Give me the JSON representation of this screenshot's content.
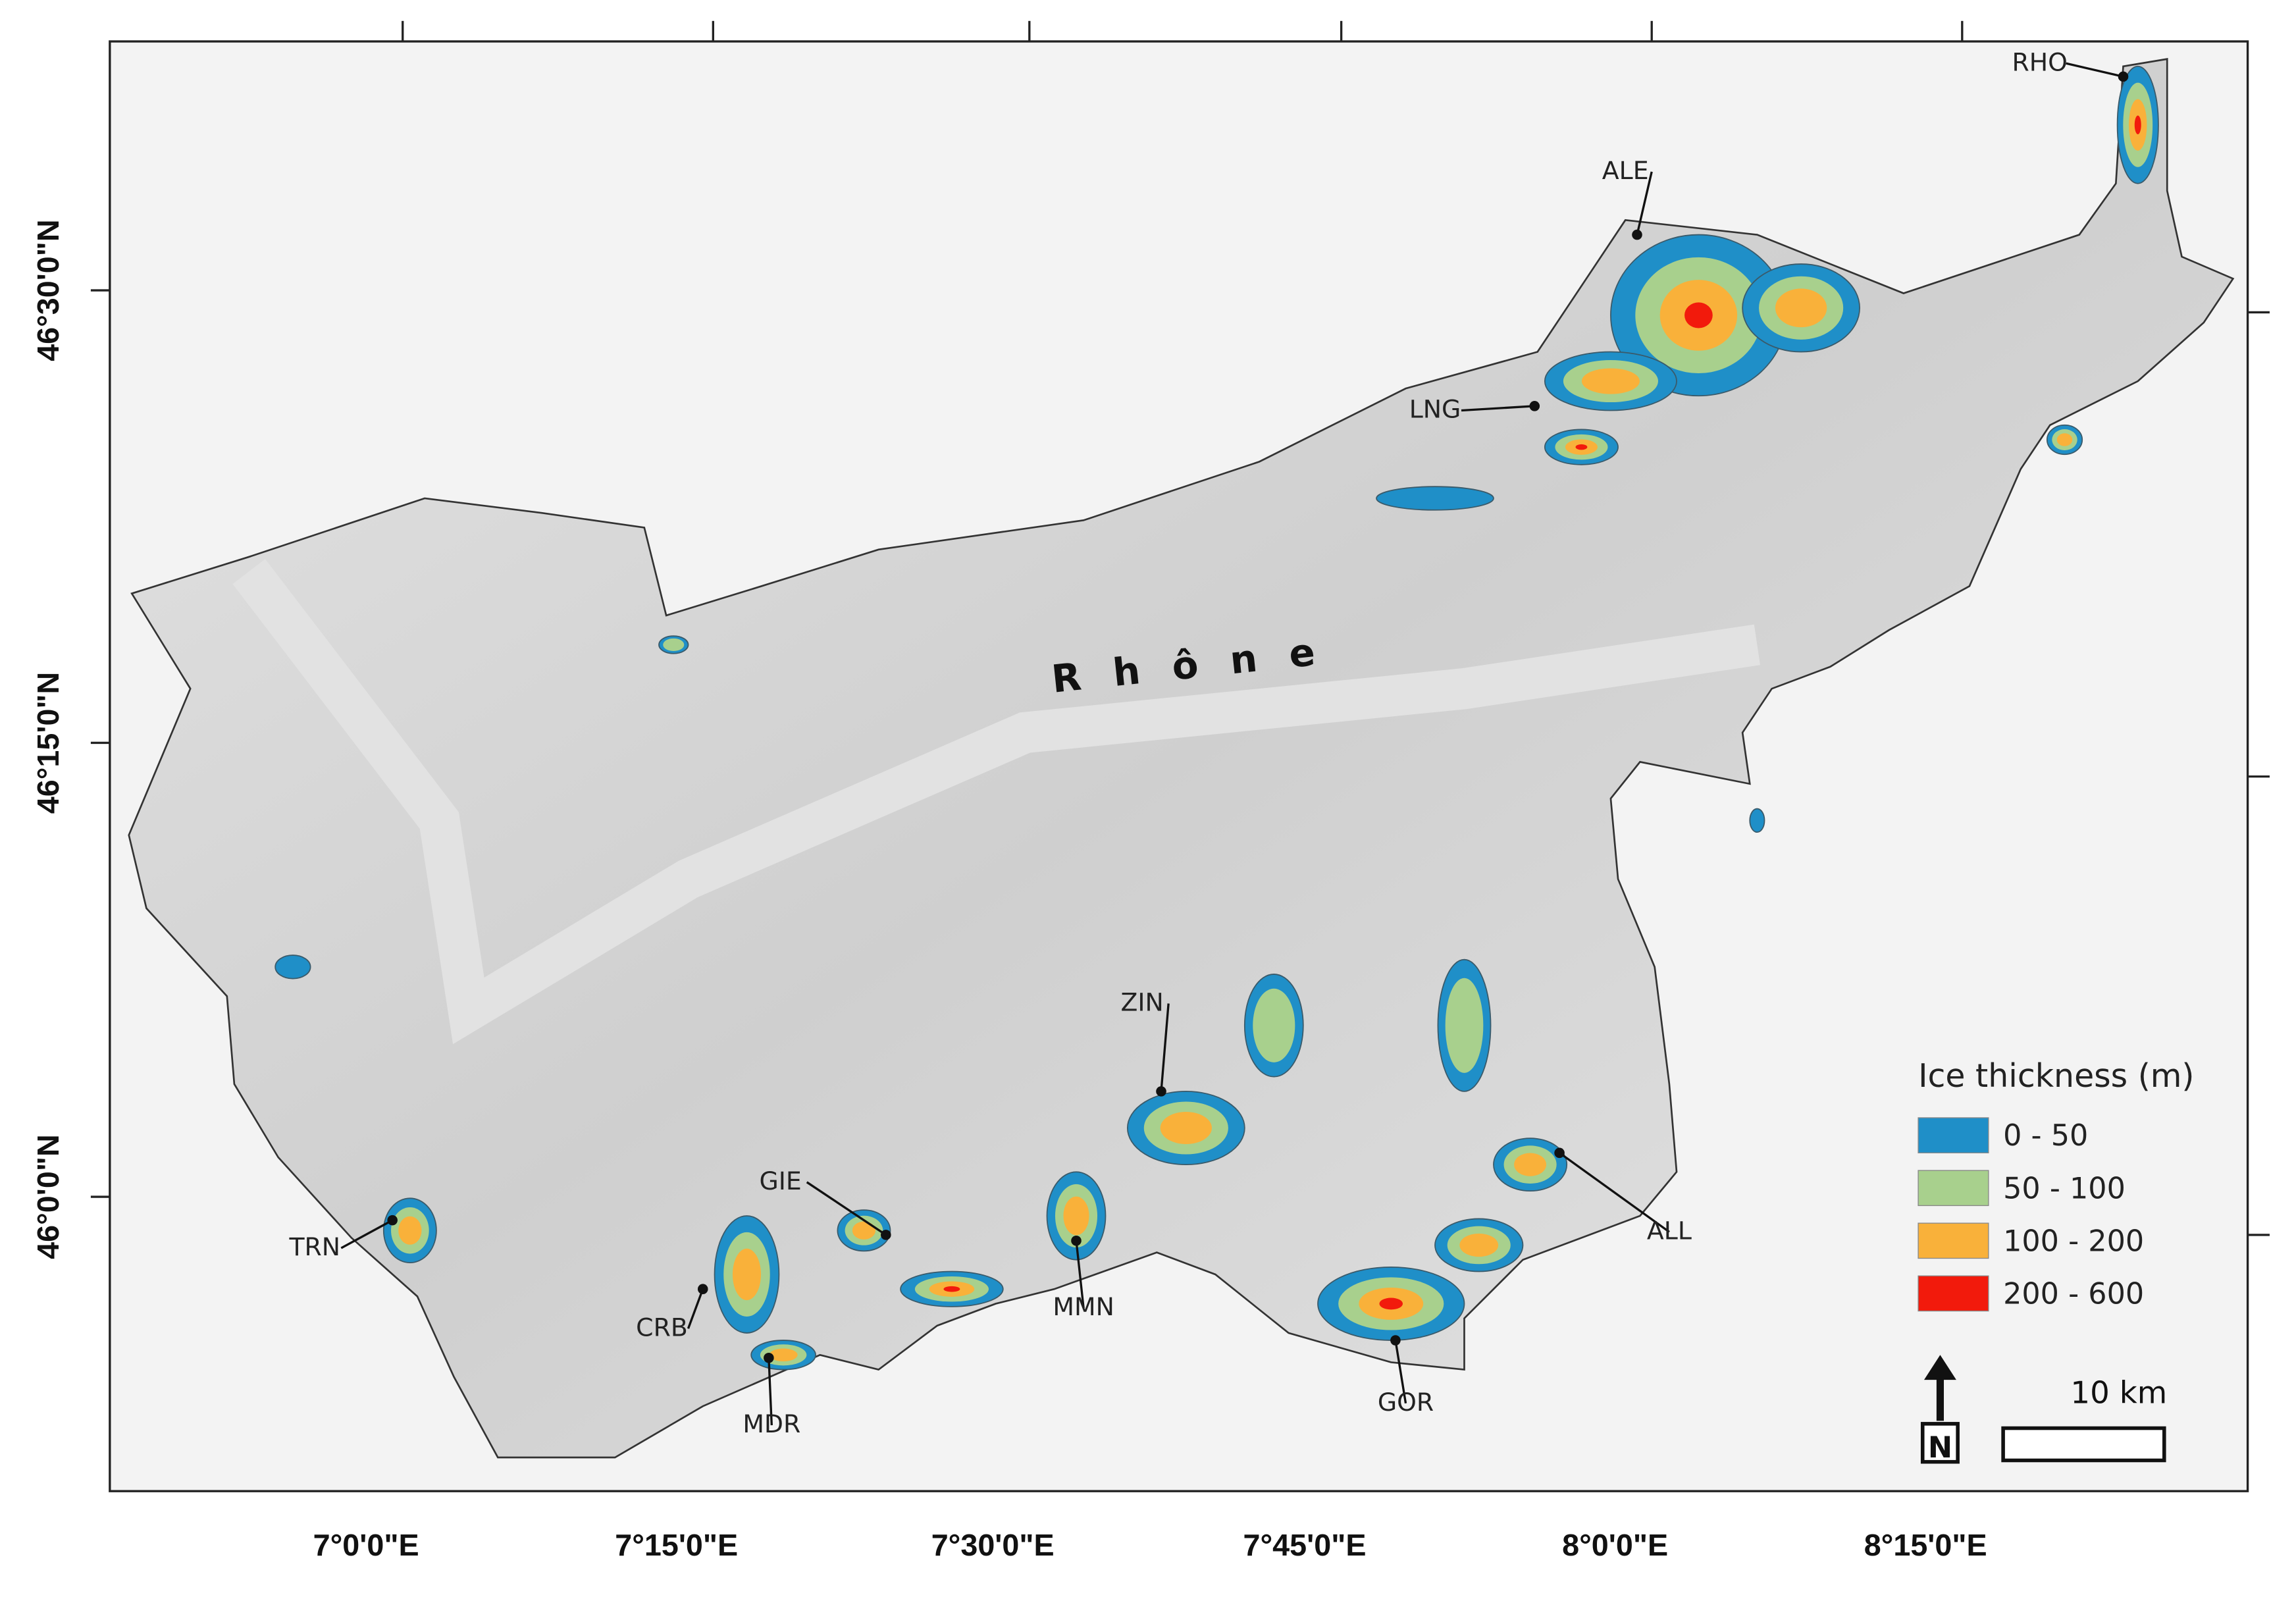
{
  "map": {
    "longitude_labels": [
      "7°0'0\"E",
      "7°15'0\"E",
      "7°30'0\"E",
      "7°45'0\"E",
      "8°0'0\"E",
      "8°15'0\"E"
    ],
    "latitude_labels": [
      "46°30'0\"N",
      "46°15'0\"N",
      "46°0'0\"N"
    ],
    "river_label": "Rhône",
    "glacier_labels": [
      "RHO",
      "ALE",
      "LNG",
      "ZIN",
      "GIE",
      "TRN",
      "CRB",
      "MDR",
      "MMN",
      "GOR",
      "ALL"
    ],
    "legend": {
      "title": "Ice thickness (m)",
      "items": [
        {
          "label": "0 - 50",
          "color": "#1f8fc8"
        },
        {
          "label": "50 - 100",
          "color": "#a8d08d"
        },
        {
          "label": "100 - 200",
          "color": "#f9b13a"
        },
        {
          "label": "200 - 600",
          "color": "#f21a0c"
        }
      ]
    },
    "scale_bar": "10 km",
    "north": "N"
  }
}
